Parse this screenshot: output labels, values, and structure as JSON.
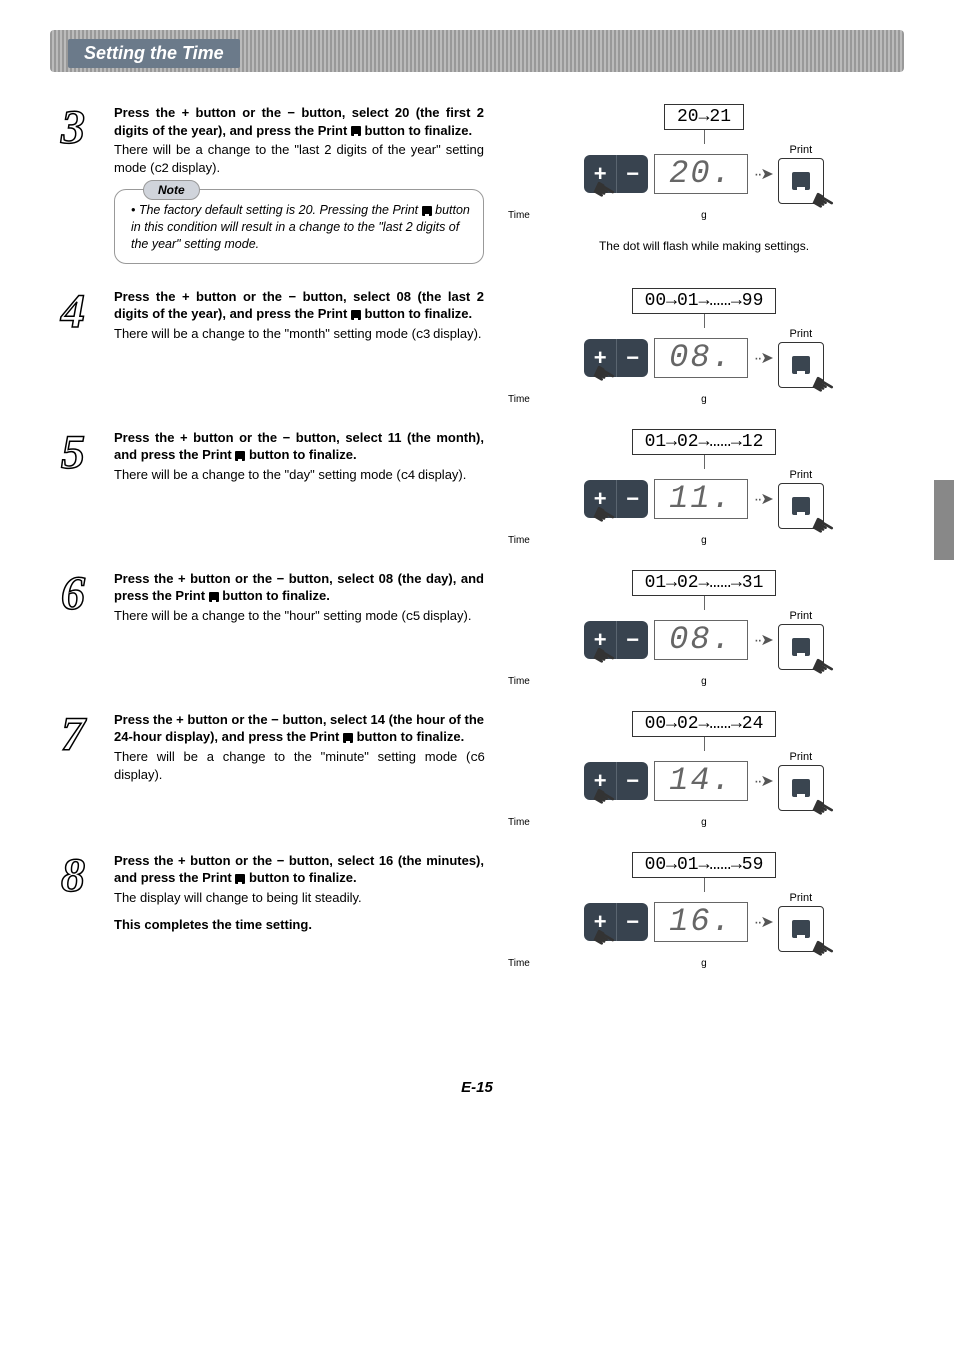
{
  "header": {
    "title": "Setting the Time"
  },
  "pageNumber": "E-15",
  "colors": {
    "header_band": "#6b7a8a",
    "button_block": "#38434f",
    "seg_text": "#666666",
    "outline_num_stroke": "#000000"
  },
  "steps": [
    {
      "num": "3",
      "bold_pre": "Press the + button or the − button, select 20 (the first 2 digits of the year), and press the Print ",
      "bold_post": " button to finalize.",
      "desc_pre": "There will be a change to the \"last 2 digits of the year\" setting mode (",
      "desc_seg": "c2",
      "desc_post": " display).",
      "note_label": "Note",
      "note_text_pre": "• The factory default setting is 20. Pressing the Print ",
      "note_text_post": " button in this condition will result in a change to the \"last 2 digits of the year\" setting mode.",
      "range": "20→21",
      "seg_value": "20.",
      "caption": "The dot will flash while making settings.",
      "btn_time": "Time",
      "btn_g": "g",
      "print_label": "Print"
    },
    {
      "num": "4",
      "bold_pre": "Press the + button or the − button, select 08 (the last 2 digits of the year), and press the Print ",
      "bold_post": " button to finalize.",
      "desc_pre": "There will be a change to the \"month\" setting mode (",
      "desc_seg": "c3",
      "desc_post": " display).",
      "range": "00→01→……→99",
      "seg_value": "08.",
      "btn_time": "Time",
      "btn_g": "g",
      "print_label": "Print"
    },
    {
      "num": "5",
      "bold_pre": "Press the + button or the − button, select 11 (the month), and press the Print ",
      "bold_post": " button to finalize.",
      "desc_pre": "There will be a change to the \"day\" setting mode (",
      "desc_seg": "c4",
      "desc_post": " display).",
      "range": "01→02→……→12",
      "seg_value": "11.",
      "btn_time": "Time",
      "btn_g": "g",
      "print_label": "Print"
    },
    {
      "num": "6",
      "bold_pre": "Press the + button or the − button, select 08 (the day), and press the Print ",
      "bold_post": " button to finalize.",
      "desc_pre": "There will be a change to the \"hour\" setting mode (",
      "desc_seg": "c5",
      "desc_post": " display).",
      "range": "01→02→……→31",
      "seg_value": "08.",
      "btn_time": "Time",
      "btn_g": "g",
      "print_label": "Print"
    },
    {
      "num": "7",
      "bold_pre": "Press the + button or the − button, select 14 (the hour of the 24-hour display), and press the Print ",
      "bold_post": " button to finalize.",
      "desc_pre": "There will be a change to the \"minute\" setting mode (",
      "desc_seg": "c6",
      "desc_post": " display).",
      "range": "00→02→……→24",
      "seg_value": "14.",
      "btn_time": "Time",
      "btn_g": "g",
      "print_label": "Print"
    },
    {
      "num": "8",
      "bold_pre": "Press the + button or the − button, select 16 (the minutes), and press the Print ",
      "bold_post": " button to finalize.",
      "desc_plain": "The display will change to being lit steadily.",
      "complete": "This completes the time setting.",
      "range": "00→01→……→59",
      "seg_value": "16.",
      "btn_time": "Time",
      "btn_g": "g",
      "print_label": "Print"
    }
  ]
}
